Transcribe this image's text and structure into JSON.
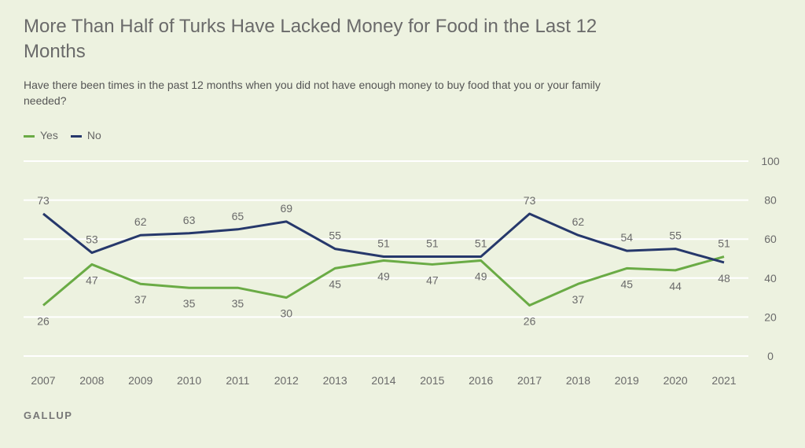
{
  "title": "More Than Half of Turks Have Lacked Money for Food in the Last 12 Months",
  "subtitle": "Have there been times in the past 12 months when you did not have enough money to buy food that you or your family needed?",
  "brand": "GALLUP",
  "colors": {
    "yes": "#6aab45",
    "no": "#26386b",
    "grid": "#ffffff"
  },
  "chart_data": {
    "type": "line",
    "title": "More Than Half of Turks Have Lacked Money for Food in the Last 12 Months",
    "x": [
      "2007",
      "2008",
      "2009",
      "2010",
      "2011",
      "2012",
      "2013",
      "2014",
      "2015",
      "2016",
      "2017",
      "2018",
      "2019",
      "2020",
      "2021"
    ],
    "series": [
      {
        "name": "Yes",
        "values": [
          26,
          47,
          37,
          35,
          35,
          30,
          45,
          49,
          47,
          49,
          26,
          37,
          45,
          44,
          51
        ]
      },
      {
        "name": "No",
        "values": [
          73,
          53,
          62,
          63,
          65,
          69,
          55,
          51,
          51,
          51,
          73,
          62,
          54,
          55,
          48
        ]
      }
    ],
    "yticks": [
      0,
      20,
      40,
      60,
      80,
      100
    ],
    "ylim": [
      0,
      100
    ],
    "grid": true,
    "legend_position": "top-left",
    "yaxis_side": "right"
  }
}
